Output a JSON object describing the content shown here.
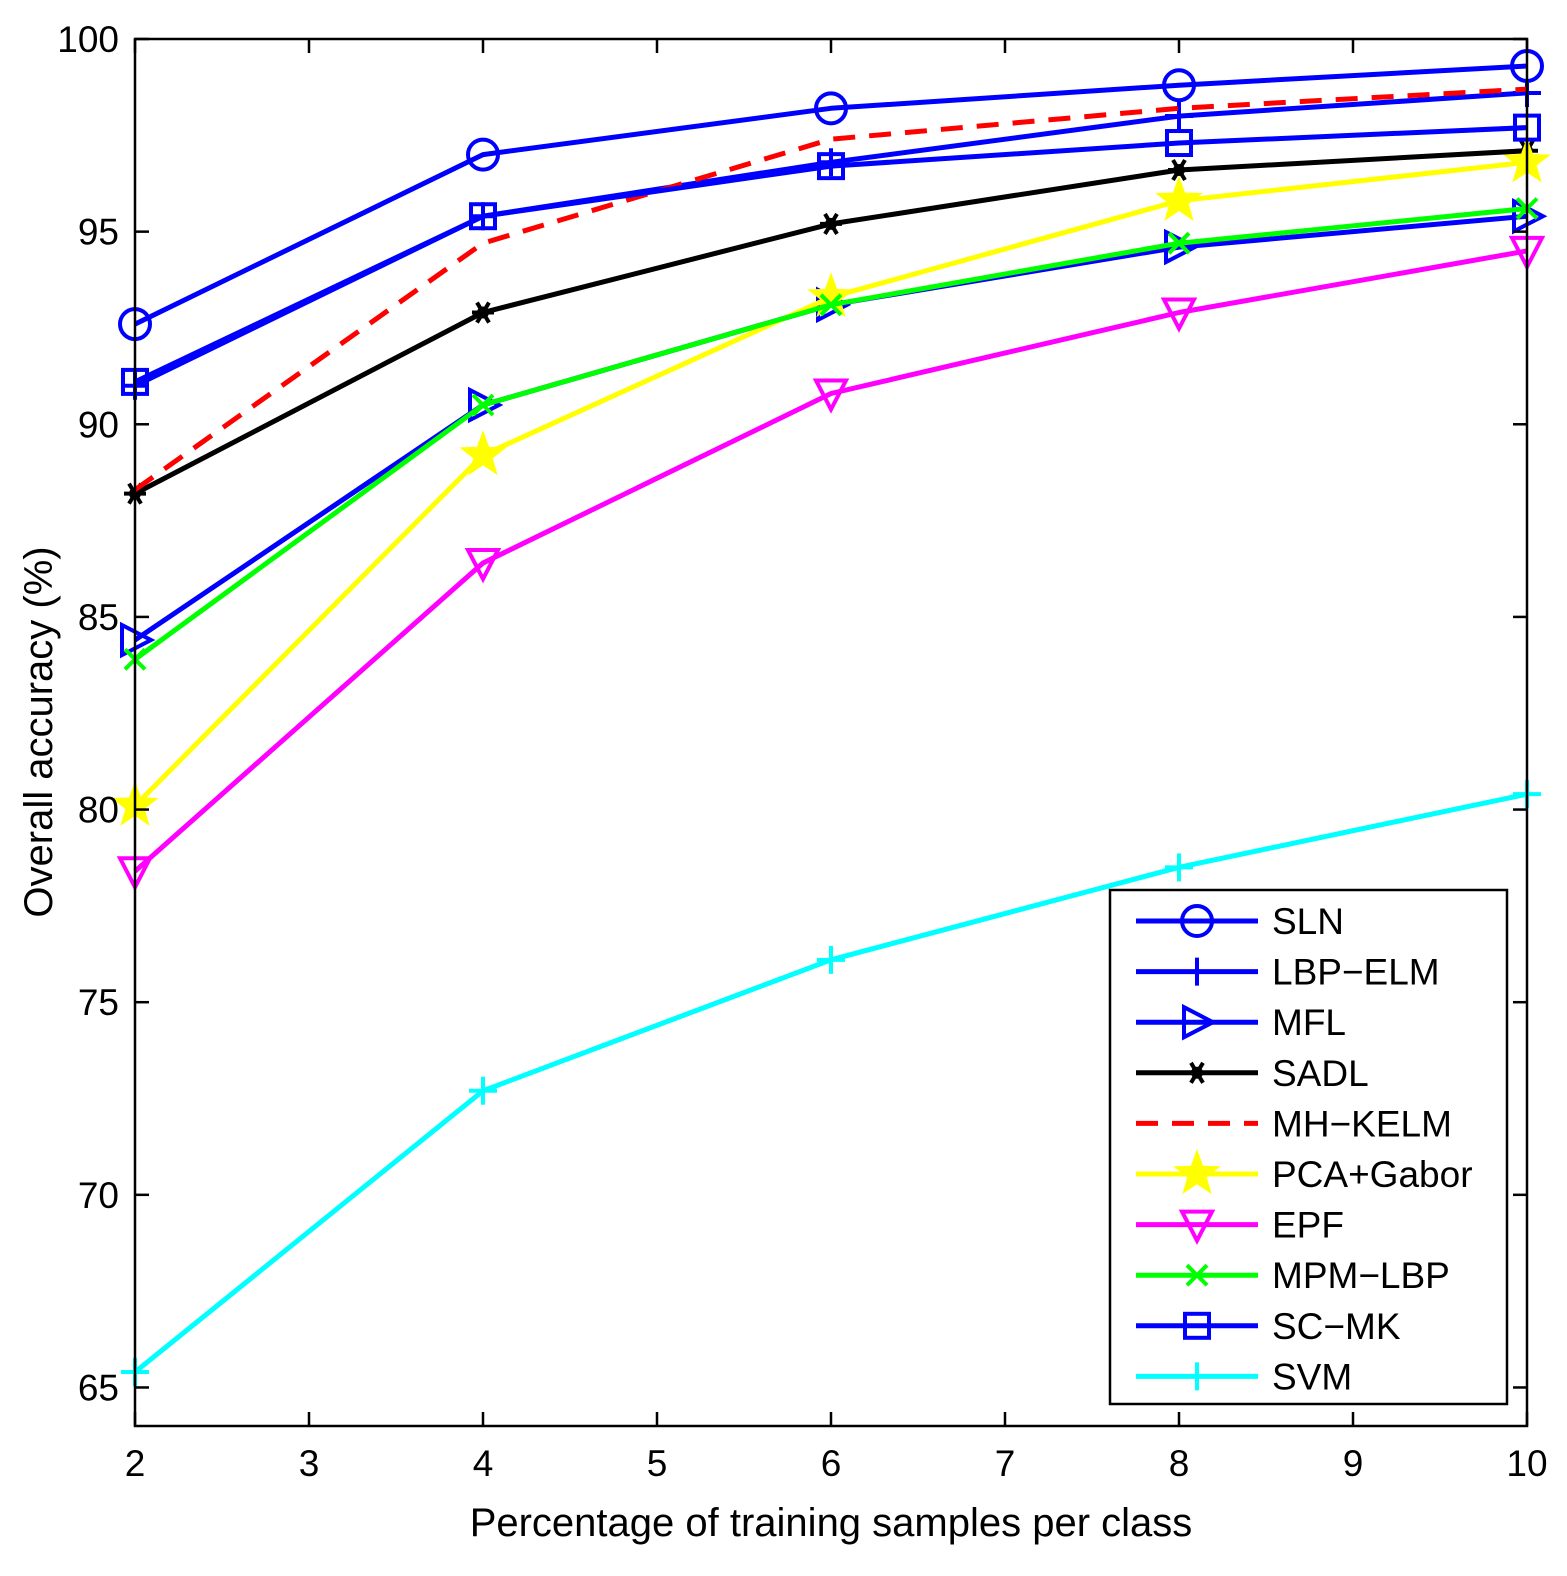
{
  "chart_data": {
    "type": "line",
    "title": "",
    "xlabel": "Percentage of training samples per class",
    "ylabel": "Overall accuracy (%)",
    "xlim": [
      2,
      10
    ],
    "ylim": [
      64,
      100
    ],
    "xticks": [
      2,
      3,
      4,
      5,
      6,
      7,
      8,
      9,
      10
    ],
    "yticks": [
      65,
      70,
      75,
      80,
      85,
      90,
      95,
      100
    ],
    "grid": false,
    "legend_position": "bottom-right",
    "x": [
      2,
      4,
      6,
      8,
      10
    ],
    "series": [
      {
        "name": "SLN",
        "values": [
          92.6,
          97.0,
          98.2,
          98.8,
          99.3
        ],
        "color": "#0000ff",
        "marker": "circle",
        "dash": "solid"
      },
      {
        "name": "LBP−ELM",
        "values": [
          91.0,
          95.4,
          96.8,
          98.0,
          98.6
        ],
        "color": "#0000ff",
        "marker": "plus",
        "dash": "solid"
      },
      {
        "name": "MFL",
        "values": [
          84.4,
          90.5,
          93.1,
          94.6,
          95.4
        ],
        "color": "#0000ff",
        "marker": "triangle-right",
        "dash": "solid"
      },
      {
        "name": "SADL",
        "values": [
          88.2,
          92.9,
          95.2,
          96.6,
          97.1
        ],
        "color": "#000000",
        "marker": "star6",
        "dash": "solid"
      },
      {
        "name": "MH−KELM",
        "values": [
          88.3,
          94.7,
          97.4,
          98.2,
          98.7
        ],
        "color": "#ff0000",
        "marker": "none",
        "dash": "dashed"
      },
      {
        "name": "PCA+Gabor",
        "values": [
          80.1,
          89.2,
          93.3,
          95.8,
          96.8
        ],
        "color": "#ffff00",
        "marker": "pentagram",
        "dash": "solid"
      },
      {
        "name": "EPF",
        "values": [
          78.4,
          86.4,
          90.8,
          92.9,
          94.5
        ],
        "color": "#ff00ff",
        "marker": "triangle-down",
        "dash": "solid"
      },
      {
        "name": "MPM−LBP",
        "values": [
          83.9,
          90.5,
          93.1,
          94.7,
          95.6
        ],
        "color": "#00ff00",
        "marker": "x",
        "dash": "solid"
      },
      {
        "name": "SC−MK",
        "values": [
          91.1,
          95.4,
          96.7,
          97.3,
          97.7
        ],
        "color": "#0000ff",
        "marker": "square",
        "dash": "solid"
      },
      {
        "name": "SVM",
        "values": [
          65.4,
          72.7,
          76.1,
          78.5,
          80.4
        ],
        "color": "#00ffff",
        "marker": "plus",
        "dash": "solid"
      }
    ]
  }
}
